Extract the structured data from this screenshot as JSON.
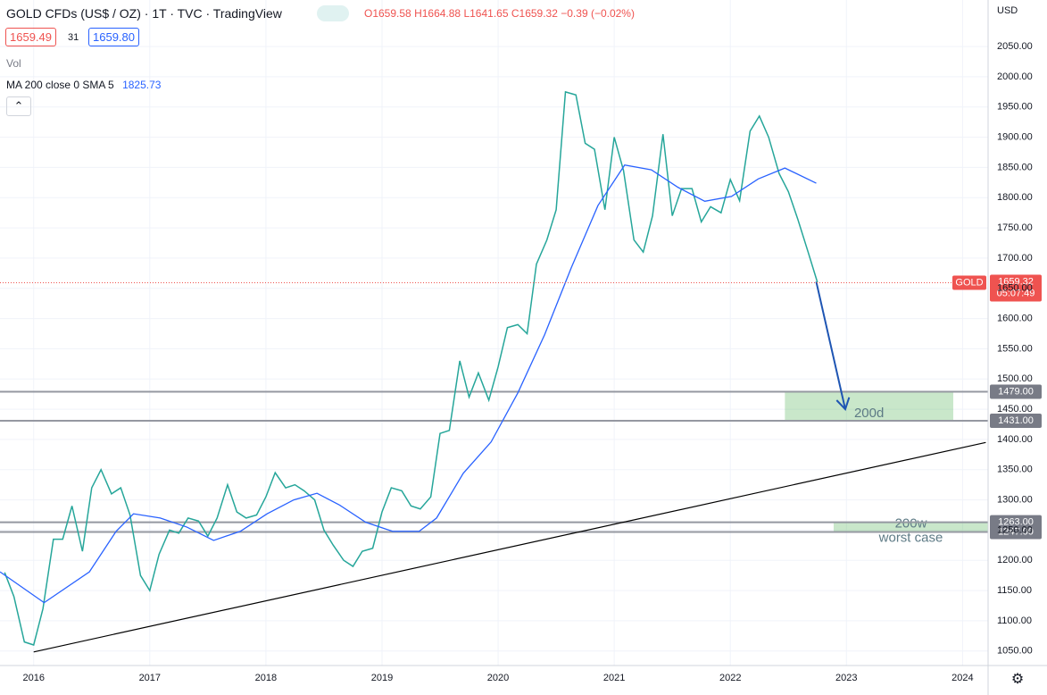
{
  "chart_data": {
    "type": "line",
    "title": "GOLD CFDs (US$ / OZ) · 1T · TVC · TradingView",
    "ohlc": [
      "O1659.58",
      "H1664.88",
      "L1641.65",
      "C1659.32",
      "−0.39 (−0.02%)"
    ],
    "bid": "1659.49",
    "spread": "31",
    "ask": "1659.80",
    "volume_label": "Vol",
    "indicator": "MA 200 close 0 SMA 5",
    "indicator_value": "1825.73",
    "currency": "USD",
    "xlim": [
      2015.71,
      2024.22
    ],
    "ylim": [
      1026,
      2127
    ],
    "xticks": [
      2016,
      2017,
      2018,
      2019,
      2020,
      2021,
      2022,
      2023,
      2024
    ],
    "yticks": [
      {
        "value": 1050,
        "label": "1050.00"
      },
      {
        "value": 1100,
        "label": "1100.00"
      },
      {
        "value": 1150,
        "label": "1150.00"
      },
      {
        "value": 1200,
        "label": "1200.00"
      },
      {
        "value": 1250,
        "label": "1250.00"
      },
      {
        "value": 1300,
        "label": "1300.00"
      },
      {
        "value": 1350,
        "label": "1350.00"
      },
      {
        "value": 1400,
        "label": "1400.00"
      },
      {
        "value": 1450,
        "label": "1450.00"
      },
      {
        "value": 1500,
        "label": "1500.00"
      },
      {
        "value": 1550,
        "label": "1550.00"
      },
      {
        "value": 1600,
        "label": "1600.00"
      },
      {
        "value": 1650,
        "label": "1650.00"
      },
      {
        "value": 1700,
        "label": "1700.00"
      },
      {
        "value": 1750,
        "label": "1750.00"
      },
      {
        "value": 1800,
        "label": "1800.00"
      },
      {
        "value": 1850,
        "label": "1850.00"
      },
      {
        "value": 1900,
        "label": "1900.00"
      },
      {
        "value": 1950,
        "label": "1950.00"
      },
      {
        "value": 2000,
        "label": "2000.00"
      },
      {
        "value": 2050,
        "label": "2050.00"
      }
    ],
    "grid": true,
    "series": [
      {
        "name": "GOLD",
        "color": "#26a69a",
        "x": [
          2015.75,
          2015.83,
          2015.92,
          2016.0,
          2016.08,
          2016.17,
          2016.25,
          2016.33,
          2016.42,
          2016.5,
          2016.58,
          2016.67,
          2016.75,
          2016.83,
          2016.92,
          2017.0,
          2017.08,
          2017.17,
          2017.25,
          2017.33,
          2017.42,
          2017.5,
          2017.58,
          2017.67,
          2017.75,
          2017.83,
          2017.92,
          2018.0,
          2018.08,
          2018.17,
          2018.25,
          2018.33,
          2018.42,
          2018.5,
          2018.58,
          2018.67,
          2018.75,
          2018.83,
          2018.92,
          2019.0,
          2019.08,
          2019.17,
          2019.25,
          2019.33,
          2019.42,
          2019.5,
          2019.58,
          2019.67,
          2019.75,
          2019.83,
          2019.92,
          2020.0,
          2020.08,
          2020.17,
          2020.25,
          2020.33,
          2020.42,
          2020.5,
          2020.58,
          2020.67,
          2020.75,
          2020.83,
          2020.92,
          2021.0,
          2021.08,
          2021.17,
          2021.25,
          2021.33,
          2021.42,
          2021.5,
          2021.58,
          2021.67,
          2021.75,
          2021.83,
          2021.92,
          2022.0,
          2022.08,
          2022.17,
          2022.25,
          2022.33,
          2022.42,
          2022.5,
          2022.58,
          2022.67,
          2022.75
        ],
        "values": [
          1180,
          1140,
          1065,
          1060,
          1120,
          1235,
          1235,
          1290,
          1215,
          1320,
          1350,
          1310,
          1320,
          1275,
          1175,
          1150,
          1210,
          1250,
          1245,
          1270,
          1265,
          1240,
          1270,
          1325,
          1280,
          1270,
          1275,
          1305,
          1345,
          1320,
          1325,
          1315,
          1300,
          1250,
          1225,
          1200,
          1190,
          1215,
          1220,
          1280,
          1320,
          1315,
          1290,
          1285,
          1305,
          1410,
          1415,
          1530,
          1470,
          1510,
          1465,
          1520,
          1585,
          1590,
          1575,
          1690,
          1730,
          1780,
          1975,
          1970,
          1890,
          1880,
          1780,
          1900,
          1845,
          1730,
          1710,
          1770,
          1905,
          1770,
          1815,
          1815,
          1760,
          1785,
          1775,
          1830,
          1795,
          1910,
          1935,
          1900,
          1840,
          1810,
          1765,
          1710,
          1660
        ]
      },
      {
        "name": "MA 200",
        "color": "#2962ff",
        "x": [
          2015.71,
          2016.09,
          2016.48,
          2016.71,
          2016.86,
          2017.09,
          2017.32,
          2017.55,
          2017.78,
          2018.01,
          2018.24,
          2018.44,
          2018.63,
          2018.86,
          2019.09,
          2019.32,
          2019.47,
          2019.7,
          2019.94,
          2020.17,
          2020.4,
          2020.63,
          2020.86,
          2021.09,
          2021.32,
          2021.55,
          2021.78,
          2022.01,
          2022.24,
          2022.47,
          2022.74
        ],
        "values": [
          1181,
          1130,
          1181,
          1248,
          1277,
          1270,
          1255,
          1233,
          1248,
          1277,
          1300,
          1311,
          1292,
          1263,
          1248,
          1248,
          1270,
          1344,
          1396,
          1477,
          1573,
          1684,
          1787,
          1854,
          1846,
          1817,
          1794,
          1802,
          1831,
          1849,
          1824
        ]
      }
    ],
    "last_price": {
      "value": 1659.32,
      "label": "1659.32",
      "symbol": "GOLD",
      "countdown": "05:07:49"
    },
    "levels": [
      {
        "value": 1479,
        "label": "1479.00"
      },
      {
        "value": 1431,
        "label": "1431.00"
      },
      {
        "value": 1263,
        "label": "1263.00"
      },
      {
        "value": 1247,
        "label": "1247.00"
      }
    ],
    "zones": [
      {
        "labels": [
          "200d"
        ],
        "x": [
          2022.47,
          2023.92
        ],
        "range": [
          1431,
          1479
        ]
      },
      {
        "labels": [
          "200w",
          "worst case"
        ],
        "x": [
          2022.89,
          2024.22
        ],
        "range": [
          1247,
          1263
        ]
      }
    ],
    "trendline": {
      "x": [
        2016.0,
        2024.2
      ],
      "values": [
        1048.5,
        1395
      ]
    },
    "arrow": {
      "x": [
        2022.74,
        2022.99
      ],
      "values": [
        1661,
        1450
      ]
    }
  }
}
